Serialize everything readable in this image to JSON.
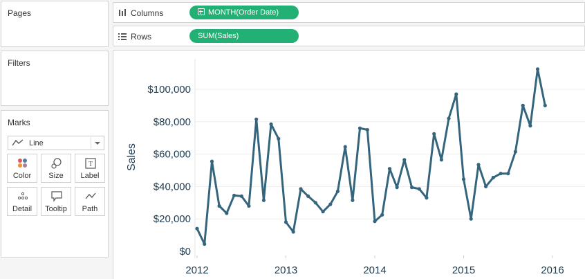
{
  "side_panel": {
    "pages_title": "Pages",
    "filters_title": "Filters",
    "marks_title": "Marks",
    "mark_type": "Line",
    "mark_buttons": [
      {
        "label": "Color"
      },
      {
        "label": "Size"
      },
      {
        "label": "Label"
      },
      {
        "label": "Detail"
      },
      {
        "label": "Tooltip"
      },
      {
        "label": "Path"
      }
    ]
  },
  "shelves": {
    "columns_label": "Columns",
    "columns_pill": "MONTH(Order Date)",
    "rows_label": "Rows",
    "rows_pill": "SUM(Sales)"
  },
  "colors": {
    "pill": "#22b075",
    "line": "#35657d",
    "axis_text": "#1e3b4f"
  },
  "chart_data": {
    "type": "line",
    "title": "",
    "xlabel": "",
    "ylabel": "Sales",
    "ylim": [
      0,
      115000
    ],
    "y_ticks": [
      {
        "value": 0,
        "label": "$0"
      },
      {
        "value": 20000,
        "label": "$20,000"
      },
      {
        "value": 40000,
        "label": "$40,000"
      },
      {
        "value": 60000,
        "label": "$60,000"
      },
      {
        "value": 80000,
        "label": "$80,000"
      },
      {
        "value": 100000,
        "label": "$100,000"
      }
    ],
    "x_ticks": [
      {
        "value": 2012,
        "label": "2012"
      },
      {
        "value": 2013,
        "label": "2013"
      },
      {
        "value": 2014,
        "label": "2014"
      },
      {
        "value": 2015,
        "label": "2015"
      },
      {
        "value": 2016,
        "label": "2016"
      }
    ],
    "xlim": [
      2011.8,
      2016.15
    ],
    "series": [
      {
        "name": "SUM(Sales)",
        "x": [
          2012.0,
          2012.083,
          2012.167,
          2012.25,
          2012.333,
          2012.417,
          2012.5,
          2012.583,
          2012.667,
          2012.75,
          2012.833,
          2012.917,
          2013.0,
          2013.083,
          2013.167,
          2013.25,
          2013.333,
          2013.417,
          2013.5,
          2013.583,
          2013.667,
          2013.75,
          2013.833,
          2013.917,
          2014.0,
          2014.083,
          2014.167,
          2014.25,
          2014.333,
          2014.417,
          2014.5,
          2014.583,
          2014.667,
          2014.75,
          2014.833,
          2014.917,
          2015.0,
          2015.083,
          2015.167,
          2015.25,
          2015.333,
          2015.417,
          2015.5,
          2015.583,
          2015.667,
          2015.75,
          2015.833,
          2015.917
        ],
        "values": [
          14000,
          4500,
          55500,
          28000,
          23500,
          34500,
          34000,
          28000,
          81500,
          31500,
          78500,
          69500,
          18000,
          12000,
          38500,
          34000,
          30000,
          24500,
          29000,
          37000,
          64500,
          31500,
          76000,
          75000,
          18500,
          22500,
          51000,
          39500,
          56500,
          39500,
          38500,
          33000,
          72500,
          56500,
          82000,
          97000,
          44500,
          20000,
          53500,
          40000,
          45500,
          48000,
          48000,
          61500,
          90000,
          77500,
          112500,
          90000
        ]
      }
    ]
  }
}
